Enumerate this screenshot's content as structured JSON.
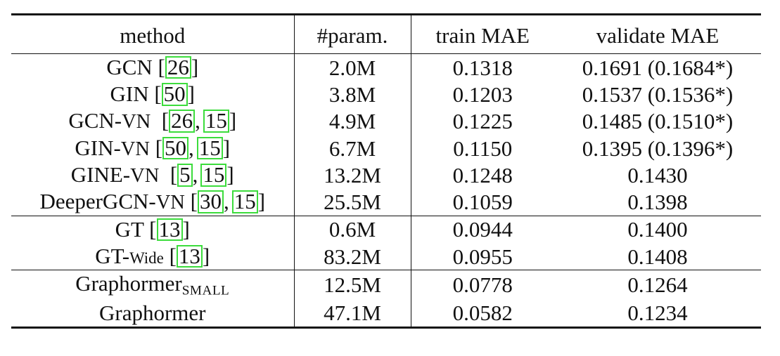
{
  "columns": {
    "method": "method",
    "params": "#param.",
    "train": "train MAE",
    "validate": "validate MAE"
  },
  "rows": [
    {
      "name": "GCN",
      "cites": [
        "26"
      ],
      "params": "2.0M",
      "train": "0.1318",
      "validate": "0.1691 (0.1684*)"
    },
    {
      "name": "GIN",
      "cites": [
        "50"
      ],
      "params": "3.8M",
      "train": "0.1203",
      "validate": "0.1537 (0.1536*)"
    },
    {
      "name": "GCN-",
      "suffix": "VN",
      "cites": [
        "26",
        "15"
      ],
      "params": "4.9M",
      "train": "0.1225",
      "validate": "0.1485 (0.1510*)"
    },
    {
      "name": "GIN-",
      "suffix": "VN",
      "cites": [
        "50",
        "15"
      ],
      "params": "6.7M",
      "train": "0.1150",
      "validate": "0.1395 (0.1396*)"
    },
    {
      "name": "GINE-",
      "suffix": "VN",
      "cites": [
        "5",
        "15"
      ],
      "params": "13.2M",
      "train": "0.1248",
      "validate": "0.1430"
    },
    {
      "name": "DeeperGCN-",
      "suffix": "VN",
      "cites": [
        "30",
        "15"
      ],
      "params": "25.5M",
      "train": "0.1059",
      "validate": "0.1398"
    },
    {
      "name": "GT",
      "cites": [
        "13"
      ],
      "params": "0.6M",
      "train": "0.0944",
      "validate": "0.1400"
    },
    {
      "name": "GT-",
      "suffix": "Wide",
      "cites": [
        "13"
      ],
      "params": "83.2M",
      "train": "0.0955",
      "validate": "0.1408"
    },
    {
      "name": "Graphormer",
      "subscript": "SMALL",
      "params": "12.5M",
      "train": "0.0778",
      "validate": "0.1264"
    },
    {
      "name": "Graphormer",
      "params": "47.1M",
      "train": "0.0582",
      "validate": "0.1234"
    }
  ],
  "colors": {
    "rule": "#111111",
    "citation_box": "#3cdc3c"
  }
}
